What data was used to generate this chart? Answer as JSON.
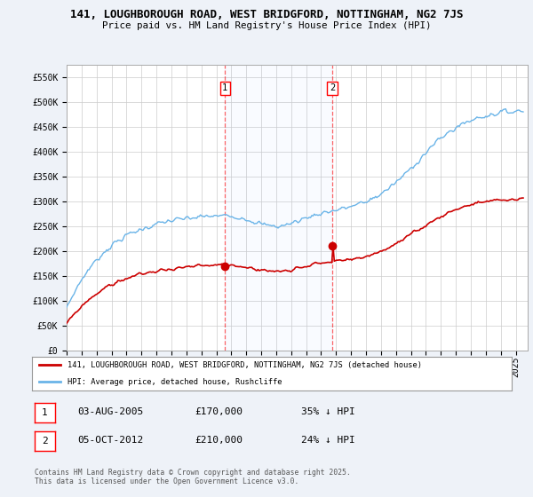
{
  "title_line1": "141, LOUGHBOROUGH ROAD, WEST BRIDGFORD, NOTTINGHAM, NG2 7JS",
  "title_line2": "Price paid vs. HM Land Registry's House Price Index (HPI)",
  "ylim": [
    0,
    575000
  ],
  "yticks": [
    0,
    50000,
    100000,
    150000,
    200000,
    250000,
    300000,
    350000,
    400000,
    450000,
    500000,
    550000
  ],
  "ytick_labels": [
    "£0",
    "£50K",
    "£100K",
    "£150K",
    "£200K",
    "£250K",
    "£300K",
    "£350K",
    "£400K",
    "£450K",
    "£500K",
    "£550K"
  ],
  "hpi_color": "#6ab4e8",
  "price_color": "#cc0000",
  "marker1_year": 2005.58,
  "marker2_year": 2012.75,
  "marker1_price": 170000,
  "marker2_price": 210000,
  "marker1_date": "03-AUG-2005",
  "marker2_date": "05-OCT-2012",
  "marker1_pct": "35% ↓ HPI",
  "marker2_pct": "24% ↓ HPI",
  "legend_line1": "141, LOUGHBOROUGH ROAD, WEST BRIDGFORD, NOTTINGHAM, NG2 7JS (detached house)",
  "legend_line2": "HPI: Average price, detached house, Rushcliffe",
  "footnote": "Contains HM Land Registry data © Crown copyright and database right 2025.\nThis data is licensed under the Open Government Licence v3.0.",
  "background_color": "#eef2f8",
  "plot_bg": "#ffffff",
  "grid_color": "#cccccc",
  "xmin": 1995,
  "xmax": 2025.8
}
